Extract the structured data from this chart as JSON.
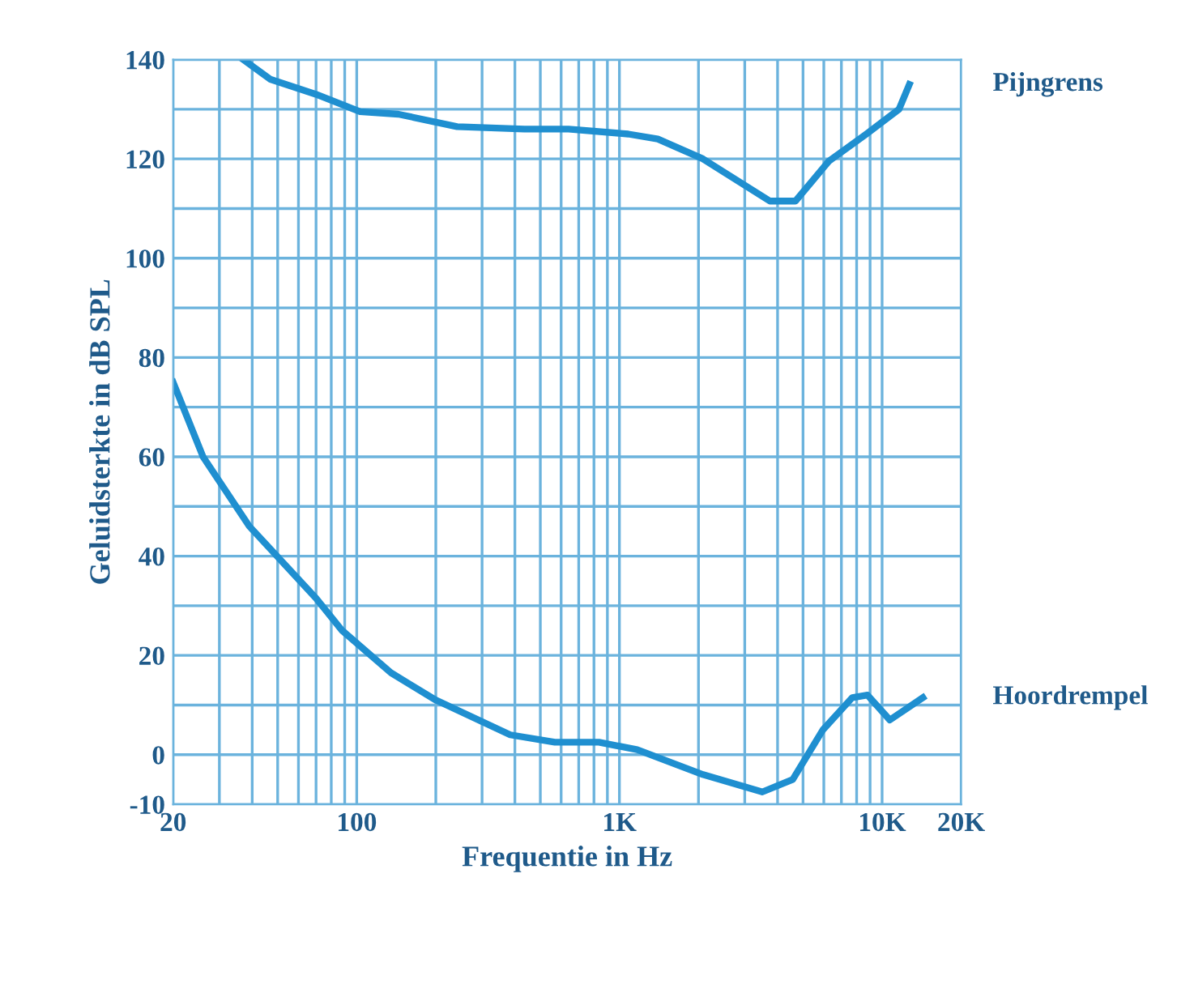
{
  "chart_data": {
    "type": "line",
    "xlabel": "Frequentie in Hz",
    "ylabel": "Geluidsterkte in dB SPL",
    "log": "x",
    "xlim": [
      20,
      20000
    ],
    "ylim": [
      -10,
      140
    ],
    "xticks": [
      {
        "value": 20,
        "label": "20"
      },
      {
        "value": 30,
        "label": null
      },
      {
        "value": 40,
        "label": null
      },
      {
        "value": 50,
        "label": null
      },
      {
        "value": 60,
        "label": null
      },
      {
        "value": 70,
        "label": null
      },
      {
        "value": 80,
        "label": null
      },
      {
        "value": 90,
        "label": null
      },
      {
        "value": 100,
        "label": "100"
      },
      {
        "value": 200,
        "label": null
      },
      {
        "value": 300,
        "label": null
      },
      {
        "value": 400,
        "label": null
      },
      {
        "value": 500,
        "label": null
      },
      {
        "value": 600,
        "label": null
      },
      {
        "value": 700,
        "label": null
      },
      {
        "value": 800,
        "label": null
      },
      {
        "value": 900,
        "label": null
      },
      {
        "value": 1000,
        "label": "1K"
      },
      {
        "value": 2000,
        "label": null
      },
      {
        "value": 3000,
        "label": null
      },
      {
        "value": 4000,
        "label": null
      },
      {
        "value": 5000,
        "label": null
      },
      {
        "value": 6000,
        "label": null
      },
      {
        "value": 7000,
        "label": null
      },
      {
        "value": 8000,
        "label": null
      },
      {
        "value": 9000,
        "label": null
      },
      {
        "value": 10000,
        "label": "10K"
      },
      {
        "value": 20000,
        "label": "20K"
      }
    ],
    "yticks": [
      -10,
      0,
      {
        "value": 10,
        "label": null
      },
      20,
      {
        "value": 30,
        "label": null
      },
      40,
      {
        "value": 50,
        "label": null
      },
      60,
      {
        "value": 70,
        "label": null
      },
      80,
      {
        "value": 90,
        "label": null
      },
      100,
      {
        "value": 110,
        "label": null
      },
      120,
      {
        "value": 130,
        "label": null
      },
      140
    ],
    "grid": true,
    "legend": false,
    "line_style": "solid",
    "marker": "none",
    "series": [
      {
        "name": "Pijngrens",
        "color": "#1f8fd0",
        "x": [
          37,
          47,
          70,
          103,
          144,
          241,
          435,
          640,
          1080,
          1400,
          2080,
          3740,
          4680,
          6260,
          8700,
          11600,
          12700
        ],
        "values": [
          140,
          136,
          133,
          129.5,
          129,
          126.5,
          126,
          126,
          125,
          124,
          120,
          111.5,
          111.5,
          119.5,
          125,
          130,
          135
        ]
      },
      {
        "name": "Hoordrempel",
        "color": "#1f8fd0",
        "x": [
          20,
          26,
          39,
          70,
          88,
          135,
          200,
          384,
          568,
          836,
          1170,
          2080,
          3500,
          4570,
          5950,
          7700,
          8800,
          10700,
          14300
        ],
        "values": [
          75,
          60,
          46,
          31.5,
          25,
          16.5,
          11,
          4,
          2.5,
          2.5,
          1,
          -4,
          -7.5,
          -5,
          5,
          11.5,
          12,
          7,
          11.5
        ]
      }
    ]
  }
}
